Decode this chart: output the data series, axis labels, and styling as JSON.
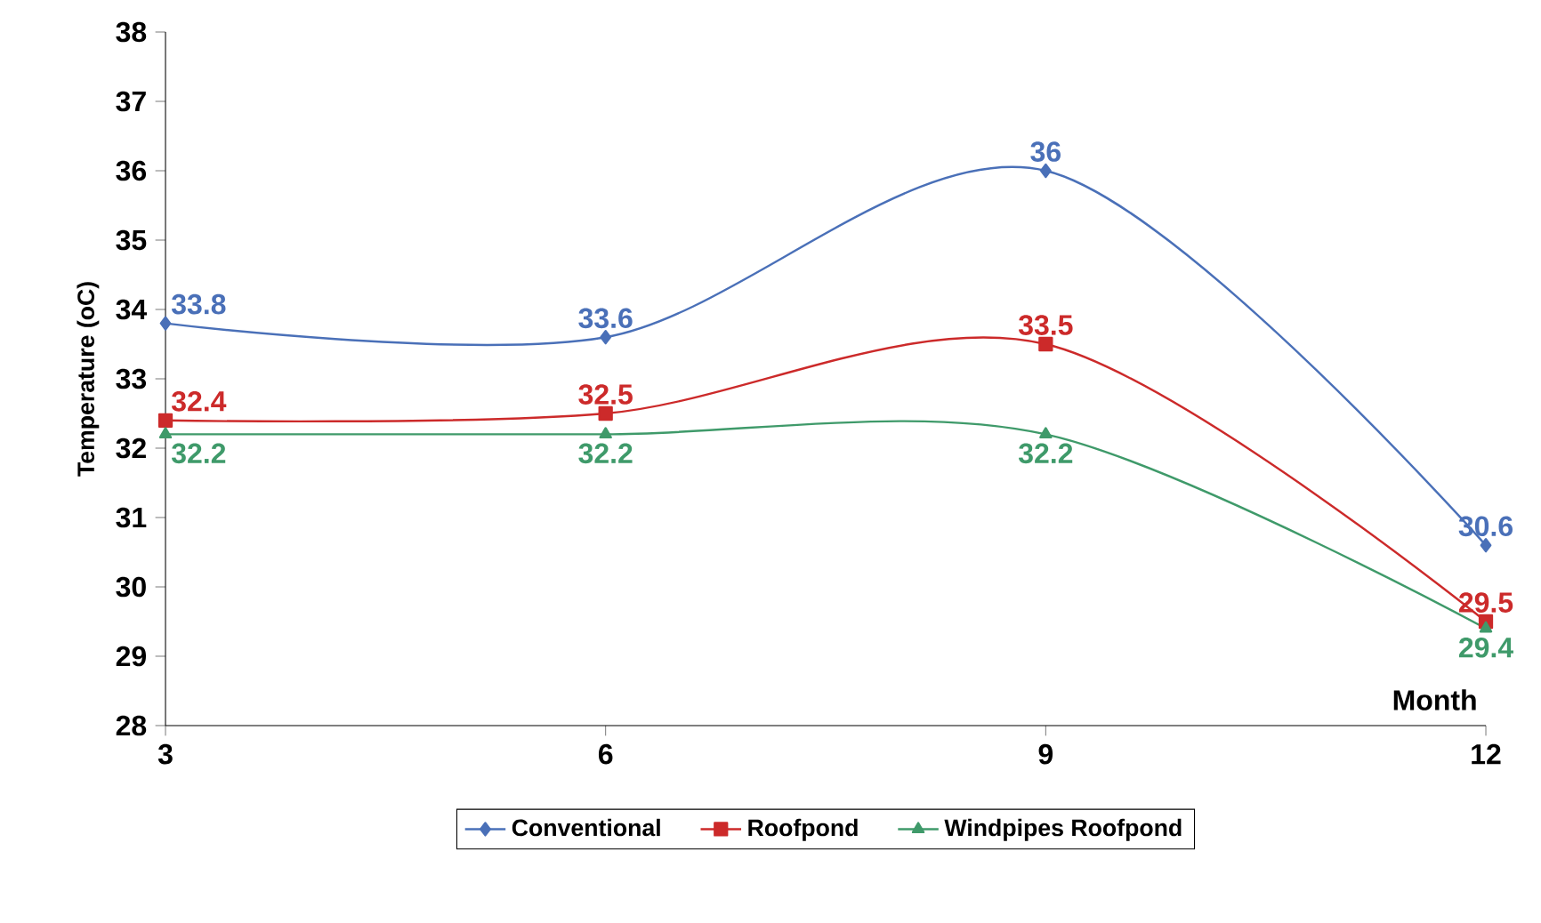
{
  "chart_data": {
    "type": "line",
    "xlabel": "Month",
    "ylabel": "Temperature (oC)",
    "x": [
      3,
      6,
      9,
      12
    ],
    "series": [
      {
        "name": "Conventional",
        "color": "#4a70b8",
        "marker": "diamond",
        "values": [
          33.8,
          33.6,
          36,
          30.6
        ]
      },
      {
        "name": "Roofpond",
        "color": "#cc2a2a",
        "marker": "square",
        "values": [
          32.4,
          32.5,
          33.5,
          29.5
        ]
      },
      {
        "name": "Windpipes Roofpond",
        "color": "#3f9a6a",
        "marker": "triangle",
        "values": [
          32.2,
          32.2,
          32.2,
          29.4
        ]
      }
    ],
    "xlim": [
      3,
      12
    ],
    "xticks": [
      3,
      6,
      9,
      12
    ],
    "ylim": [
      28,
      38
    ],
    "yticks": [
      28,
      29,
      30,
      31,
      32,
      33,
      34,
      35,
      36,
      37,
      38
    ],
    "data_labels": true,
    "grid": false,
    "legend": "bottom",
    "line_style": "solid"
  }
}
